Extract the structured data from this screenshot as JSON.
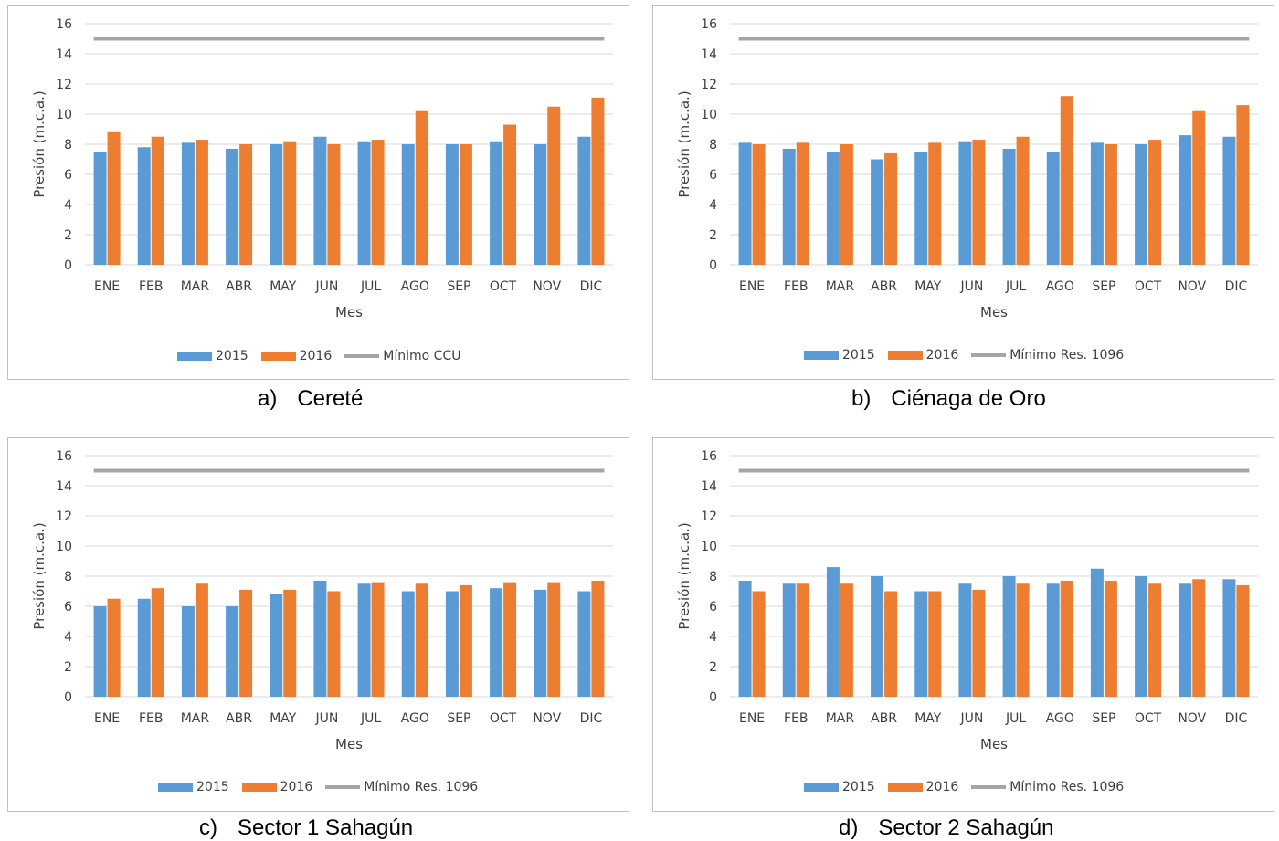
{
  "charts": [
    {
      "caption_letter": "a)",
      "caption_text": "Cereté",
      "chart_data": {
        "type": "bar",
        "categories": [
          "ENE",
          "FEB",
          "MAR",
          "ABR",
          "MAY",
          "JUN",
          "JUL",
          "AGO",
          "SEP",
          "OCT",
          "NOV",
          "DIC"
        ],
        "series": [
          {
            "name": "2015",
            "values": [
              7.5,
              7.8,
              8.1,
              7.7,
              8.0,
              8.5,
              8.2,
              8.0,
              8.0,
              8.2,
              8.0,
              8.5
            ]
          },
          {
            "name": "2016",
            "values": [
              8.8,
              8.5,
              8.3,
              8.0,
              8.2,
              8.0,
              8.3,
              10.2,
              8.0,
              9.3,
              10.5,
              11.1
            ]
          }
        ],
        "reference_line": {
          "name": "Mínimo CCU",
          "value": 15
        },
        "xlabel": "Mes",
        "ylabel": "Presión (m.c.a.)",
        "ylim": [
          0,
          16
        ],
        "yticks": [
          "0",
          "2",
          "4",
          "6",
          "8",
          "10",
          "12",
          "14",
          "16"
        ],
        "grid": true,
        "legend": "bottom"
      }
    },
    {
      "caption_letter": "b)",
      "caption_text": "Ciénaga de Oro",
      "chart_data": {
        "type": "bar",
        "categories": [
          "ENE",
          "FEB",
          "MAR",
          "ABR",
          "MAY",
          "JUN",
          "JUL",
          "AGO",
          "SEP",
          "OCT",
          "NOV",
          "DIC"
        ],
        "series": [
          {
            "name": "2015",
            "values": [
              8.1,
              7.7,
              7.5,
              7.0,
              7.5,
              8.2,
              7.7,
              7.5,
              8.1,
              8.0,
              8.6,
              8.5
            ]
          },
          {
            "name": "2016",
            "values": [
              8.0,
              8.1,
              8.0,
              7.4,
              8.1,
              8.3,
              8.5,
              11.2,
              8.0,
              8.3,
              10.2,
              10.6
            ]
          }
        ],
        "reference_line": {
          "name": "Mínimo Res. 1096",
          "value": 15
        },
        "xlabel": "Mes",
        "ylabel": "Presión (m.c.a.)",
        "ylim": [
          0,
          16
        ],
        "yticks": [
          "0",
          "2",
          "4",
          "6",
          "8",
          "10",
          "12",
          "14",
          "16"
        ],
        "grid": true,
        "legend": "bottom"
      }
    },
    {
      "caption_letter": "c)",
      "caption_text": "Sector 1 Sahagún",
      "chart_data": {
        "type": "bar",
        "categories": [
          "ENE",
          "FEB",
          "MAR",
          "ABR",
          "MAY",
          "JUN",
          "JUL",
          "AGO",
          "SEP",
          "OCT",
          "NOV",
          "DIC"
        ],
        "series": [
          {
            "name": "2015",
            "values": [
              6.0,
              6.5,
              6.0,
              6.0,
              6.8,
              7.7,
              7.5,
              7.0,
              7.0,
              7.2,
              7.1,
              7.0
            ]
          },
          {
            "name": "2016",
            "values": [
              6.5,
              7.2,
              7.5,
              7.1,
              7.1,
              7.0,
              7.6,
              7.5,
              7.4,
              7.6,
              7.6,
              7.7
            ]
          }
        ],
        "reference_line": {
          "name": "Mínimo Res. 1096",
          "value": 15
        },
        "xlabel": "Mes",
        "ylabel": "Presión (m.c.a.)",
        "ylim": [
          0,
          16
        ],
        "yticks": [
          "0",
          "2",
          "4",
          "6",
          "8",
          "10",
          "12",
          "14",
          "16"
        ],
        "grid": true,
        "legend": "bottom"
      }
    },
    {
      "caption_letter": "d)",
      "caption_text": "Sector 2 Sahagún",
      "chart_data": {
        "type": "bar",
        "categories": [
          "ENE",
          "FEB",
          "MAR",
          "ABR",
          "MAY",
          "JUN",
          "JUL",
          "AGO",
          "SEP",
          "OCT",
          "NOV",
          "DIC"
        ],
        "series": [
          {
            "name": "2015",
            "values": [
              7.7,
              7.5,
              8.6,
              8.0,
              7.0,
              7.5,
              8.0,
              7.5,
              8.5,
              8.0,
              7.5,
              7.8
            ]
          },
          {
            "name": "2016",
            "values": [
              7.0,
              7.5,
              7.5,
              7.0,
              7.0,
              7.1,
              7.5,
              7.7,
              7.7,
              7.5,
              7.8,
              7.4
            ]
          }
        ],
        "reference_line": {
          "name": "Mínimo Res. 1096",
          "value": 15
        },
        "xlabel": "Mes",
        "ylabel": "Presión (m.c.a.)",
        "ylim": [
          0,
          16
        ],
        "yticks": [
          "0",
          "2",
          "4",
          "6",
          "8",
          "10",
          "12",
          "14",
          "16"
        ],
        "grid": true,
        "legend": "bottom"
      }
    }
  ],
  "colors": {
    "series_2015": "#5b9bd5",
    "series_2016": "#ed7d31",
    "reference": "#a5a5a5",
    "gridline": "#d9d9d9",
    "axis_text": "#404040"
  }
}
